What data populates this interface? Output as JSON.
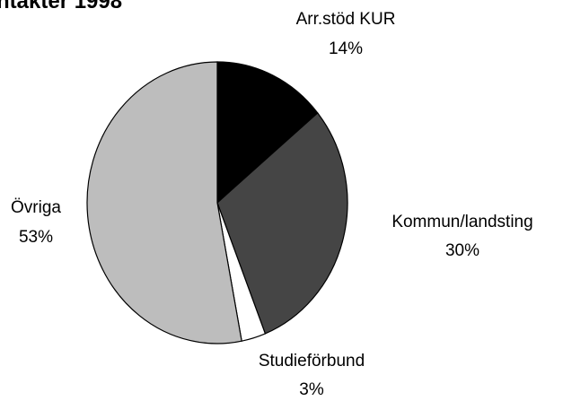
{
  "chart_data": {
    "type": "pie",
    "title": "ntäkter 1998",
    "categories": [
      "Arr.stöd KUR",
      "Kommun/landsting",
      "Studieförbund",
      "Övriga"
    ],
    "values": [
      14,
      30,
      3,
      53
    ],
    "value_labels": [
      "14%",
      "30%",
      "3%",
      "53%"
    ],
    "colors": [
      "#000000",
      "#454545",
      "#ffffff",
      "#bdbdbd"
    ]
  }
}
